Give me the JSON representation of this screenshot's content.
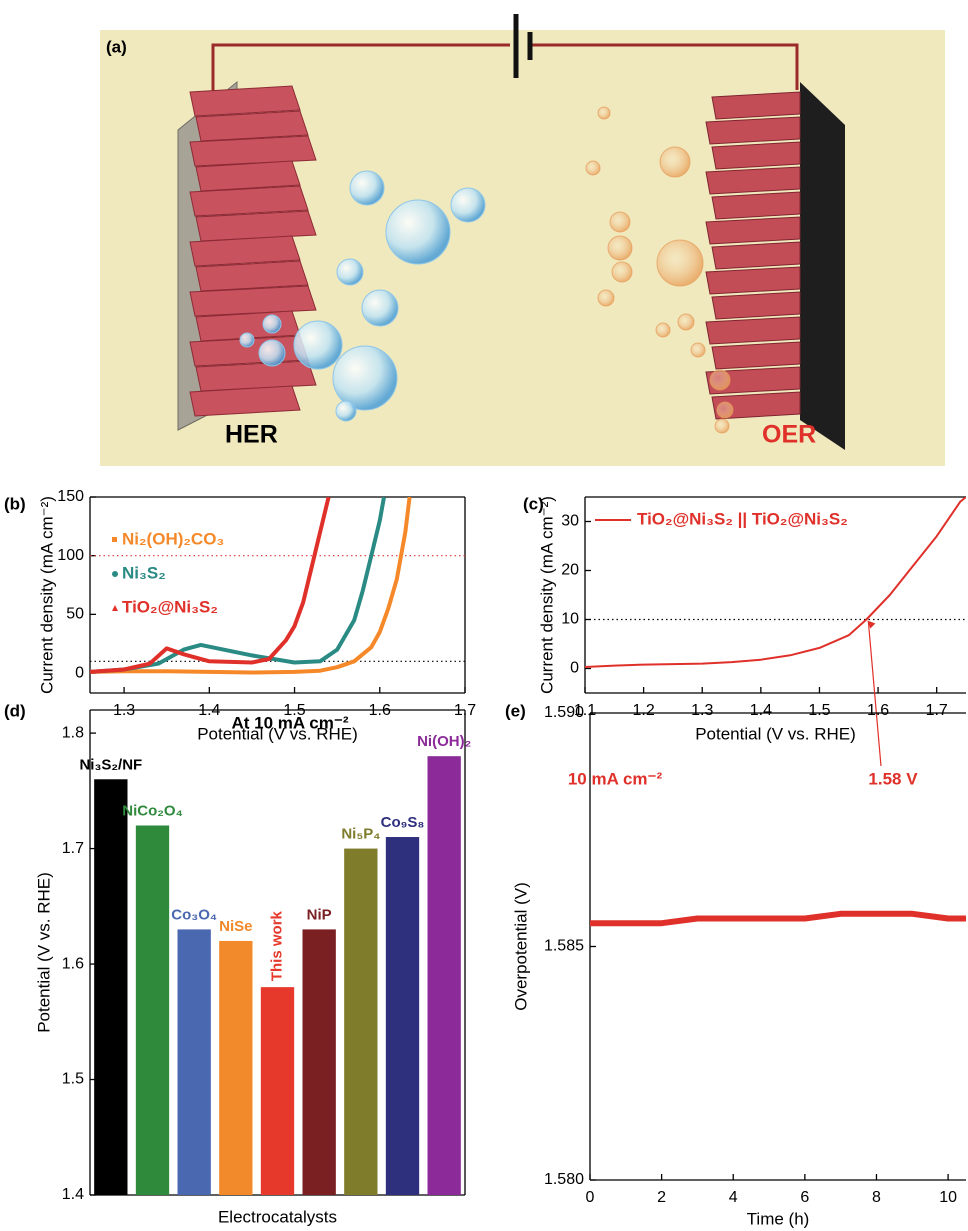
{
  "illustration": {
    "label": "(a)",
    "left_label": "HER",
    "right_label": "OER"
  },
  "chart_data": [
    {
      "type": "line",
      "label": "(b)",
      "xlabel": "Potential (V vs. RHE)",
      "ylabel": "Current density (mA cm⁻²)",
      "xlim": [
        1.26,
        1.7
      ],
      "ylim": [
        -17,
        150
      ],
      "xticks": [
        1.3,
        1.4,
        1.5,
        1.6,
        1.7
      ],
      "yticks": [
        0,
        50,
        100,
        150
      ],
      "legend": "upper left",
      "reference_lines": [
        {
          "value": 100,
          "color": "#e0393e"
        },
        {
          "value": 10,
          "color": "#000000"
        }
      ],
      "series": [
        {
          "name": "Ni₂(OH)₂CO₃",
          "color": "#f5892a",
          "marker": "square",
          "x": [
            1.26,
            1.3,
            1.35,
            1.4,
            1.45,
            1.5,
            1.53,
            1.55,
            1.57,
            1.59,
            1.6,
            1.61,
            1.62,
            1.63,
            1.635
          ],
          "values": [
            1,
            1.5,
            1.5,
            1,
            0.5,
            1,
            2,
            5,
            10,
            22,
            35,
            55,
            80,
            120,
            150
          ]
        },
        {
          "name": "Ni₃S₂",
          "color": "#2a8a84",
          "marker": "circle",
          "x": [
            1.26,
            1.3,
            1.34,
            1.37,
            1.39,
            1.41,
            1.45,
            1.5,
            1.53,
            1.55,
            1.57,
            1.58,
            1.59,
            1.6,
            1.605
          ],
          "values": [
            1,
            3,
            8,
            20,
            24,
            21,
            15,
            9,
            10,
            20,
            45,
            70,
            100,
            130,
            150
          ]
        },
        {
          "name": "TiO₂@Ni₃S₂",
          "color": "#e0302a",
          "marker": "triangle",
          "x": [
            1.26,
            1.3,
            1.33,
            1.35,
            1.37,
            1.4,
            1.45,
            1.47,
            1.49,
            1.5,
            1.51,
            1.52,
            1.53,
            1.54
          ],
          "values": [
            1,
            3,
            8,
            21,
            16,
            10,
            9,
            12,
            28,
            40,
            60,
            90,
            120,
            150
          ]
        }
      ]
    },
    {
      "type": "line",
      "label": "(c)",
      "xlabel": "Potential (V vs. RHE)",
      "ylabel": "Current density (mA cm⁻²)",
      "xlim": [
        1.1,
        1.75
      ],
      "ylim": [
        -5,
        35
      ],
      "xticks": [
        1.1,
        1.2,
        1.3,
        1.4,
        1.5,
        1.6,
        1.7
      ],
      "yticks": [
        0,
        10,
        20,
        30
      ],
      "legend": "upper left",
      "reference_lines": [
        {
          "value": 10,
          "color": "#000000"
        }
      ],
      "annotation": {
        "text": "1.58 V",
        "x": 1.58,
        "y": 10
      },
      "series": [
        {
          "name": "TiO₂@Ni₃S₂ || TiO₂@Ni₃S₂",
          "color": "#e0302a",
          "marker": "line",
          "x": [
            1.1,
            1.15,
            1.2,
            1.3,
            1.35,
            1.4,
            1.45,
            1.5,
            1.55,
            1.58,
            1.62,
            1.66,
            1.7,
            1.74,
            1.75
          ],
          "values": [
            0.3,
            0.6,
            0.8,
            1.0,
            1.3,
            1.8,
            2.7,
            4.2,
            6.8,
            10,
            15,
            21,
            27,
            34,
            35
          ]
        }
      ]
    },
    {
      "type": "bar",
      "label": "(d)",
      "title": "At 10 mA cm⁻²",
      "xlabel": "Electrocatalysts",
      "ylabel": "Potential (V vs. RHE)",
      "ylim": [
        1.4,
        1.82
      ],
      "yticks": [
        1.4,
        1.5,
        1.6,
        1.7,
        1.8
      ],
      "categories": [
        "Ni₃S₂/NF",
        "NiCo₂O₄",
        "Co₃O₄",
        "NiSe",
        "This work",
        "NiP",
        "Ni₅P₄",
        "Co₉S₈",
        "Ni(OH)₂"
      ],
      "values": [
        1.76,
        1.72,
        1.63,
        1.62,
        1.58,
        1.63,
        1.7,
        1.71,
        1.78
      ],
      "colors": [
        "#000000",
        "#2f8a3c",
        "#4a68b0",
        "#f2892a",
        "#e6392b",
        "#7a2022",
        "#7f7c2c",
        "#2e307e",
        "#8b2a98"
      ]
    },
    {
      "type": "line",
      "label": "(e)",
      "xlabel": "Time (h)",
      "ylabel": "Overpotential (V)",
      "xlim": [
        0,
        10.5
      ],
      "ylim": [
        1.58,
        1.59
      ],
      "xticks": [
        0,
        2,
        4,
        6,
        8,
        10
      ],
      "yticks": [
        {
          "value": 1.58,
          "label": "1.580"
        },
        {
          "value": 1.585,
          "label": "1.585"
        },
        {
          "value": 1.59,
          "label": "1.590"
        }
      ],
      "annotation": {
        "text": "10 mA cm⁻²"
      },
      "series": [
        {
          "name": null,
          "color": "#e0302a",
          "marker": "line",
          "x": [
            0,
            1,
            2,
            3,
            4,
            5,
            6,
            7,
            8,
            9,
            10,
            10.5
          ],
          "values": [
            1.5855,
            1.5855,
            1.5855,
            1.5856,
            1.5856,
            1.5856,
            1.5856,
            1.5857,
            1.5857,
            1.5857,
            1.5856,
            1.5856
          ]
        }
      ]
    }
  ]
}
